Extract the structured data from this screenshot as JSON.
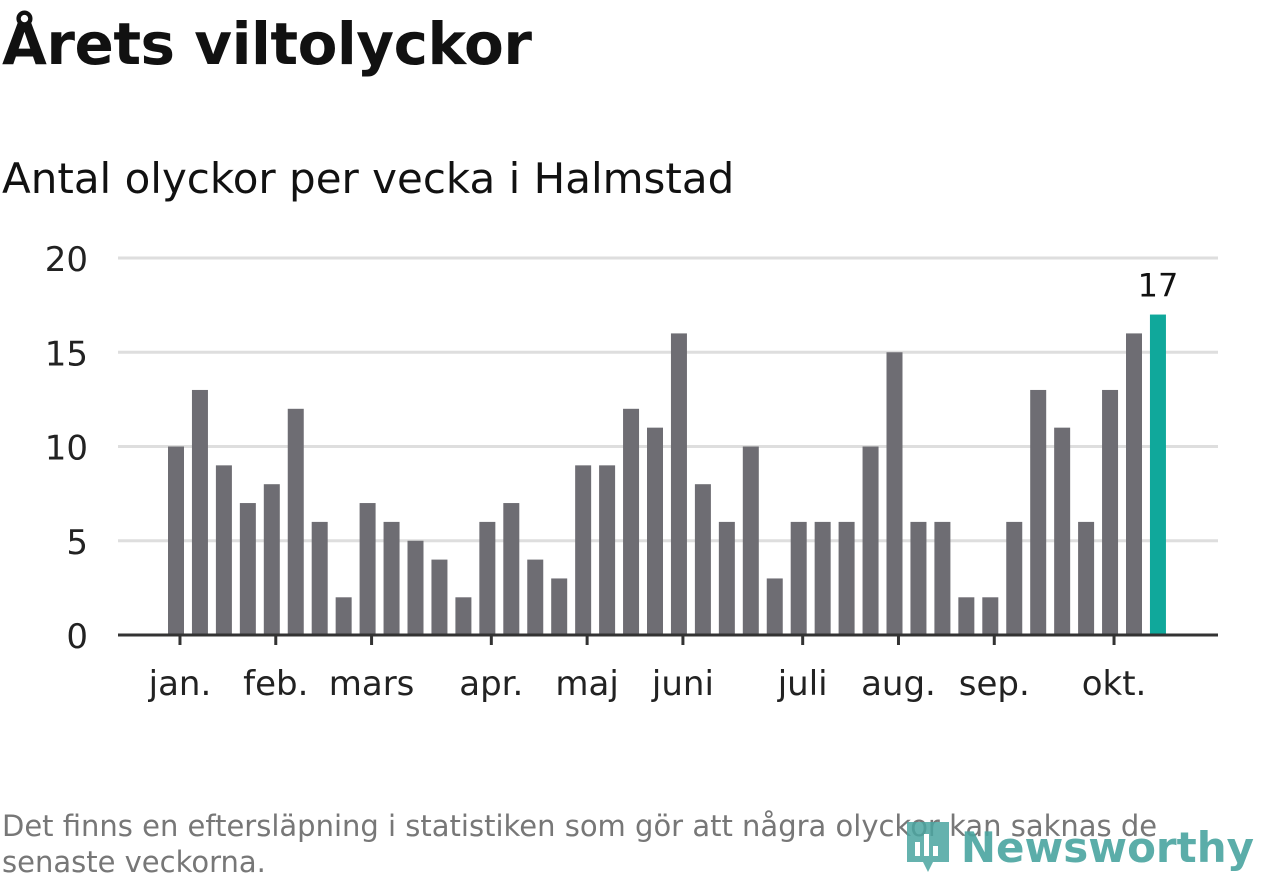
{
  "title": "Årets viltolyckor",
  "subtitle": "Antal olyckor per vecka i Halmstad",
  "note": "Det finns en eftersläpning i statistiken som gör att några olyckor kan saknas de senaste veckorna.",
  "brand": "Newsworthy",
  "colors": {
    "bar": "#6e6d73",
    "highlight": "#10a89b",
    "grid": "#dedede",
    "axis": "#333333",
    "brand": "#4aa5a0"
  },
  "chart_data": {
    "type": "bar",
    "title": "Årets viltolyckor",
    "subtitle": "Antal olyckor per vecka i Halmstad",
    "ylim": [
      0,
      20
    ],
    "yticks": [
      0,
      5,
      10,
      15,
      20
    ],
    "values": [
      10,
      13,
      9,
      7,
      8,
      12,
      6,
      2,
      7,
      6,
      5,
      4,
      2,
      6,
      7,
      4,
      3,
      9,
      9,
      12,
      11,
      16,
      8,
      6,
      10,
      3,
      6,
      6,
      6,
      10,
      15,
      6,
      6,
      2,
      2,
      6,
      13,
      11,
      6,
      13,
      16,
      17
    ],
    "highlight_index": 41,
    "highlight_label": "17",
    "month_labels": [
      {
        "label": "jan.",
        "week": 0.5
      },
      {
        "label": "feb.",
        "week": 4.5
      },
      {
        "label": "mars",
        "week": 8.5
      },
      {
        "label": "apr.",
        "week": 13.5
      },
      {
        "label": "maj",
        "week": 17.5
      },
      {
        "label": "juni",
        "week": 21.5
      },
      {
        "label": "juli",
        "week": 26.5
      },
      {
        "label": "aug.",
        "week": 30.5
      },
      {
        "label": "sep.",
        "week": 34.5
      },
      {
        "label": "okt.",
        "week": 39.5
      }
    ],
    "grid": true,
    "legend": "none"
  }
}
